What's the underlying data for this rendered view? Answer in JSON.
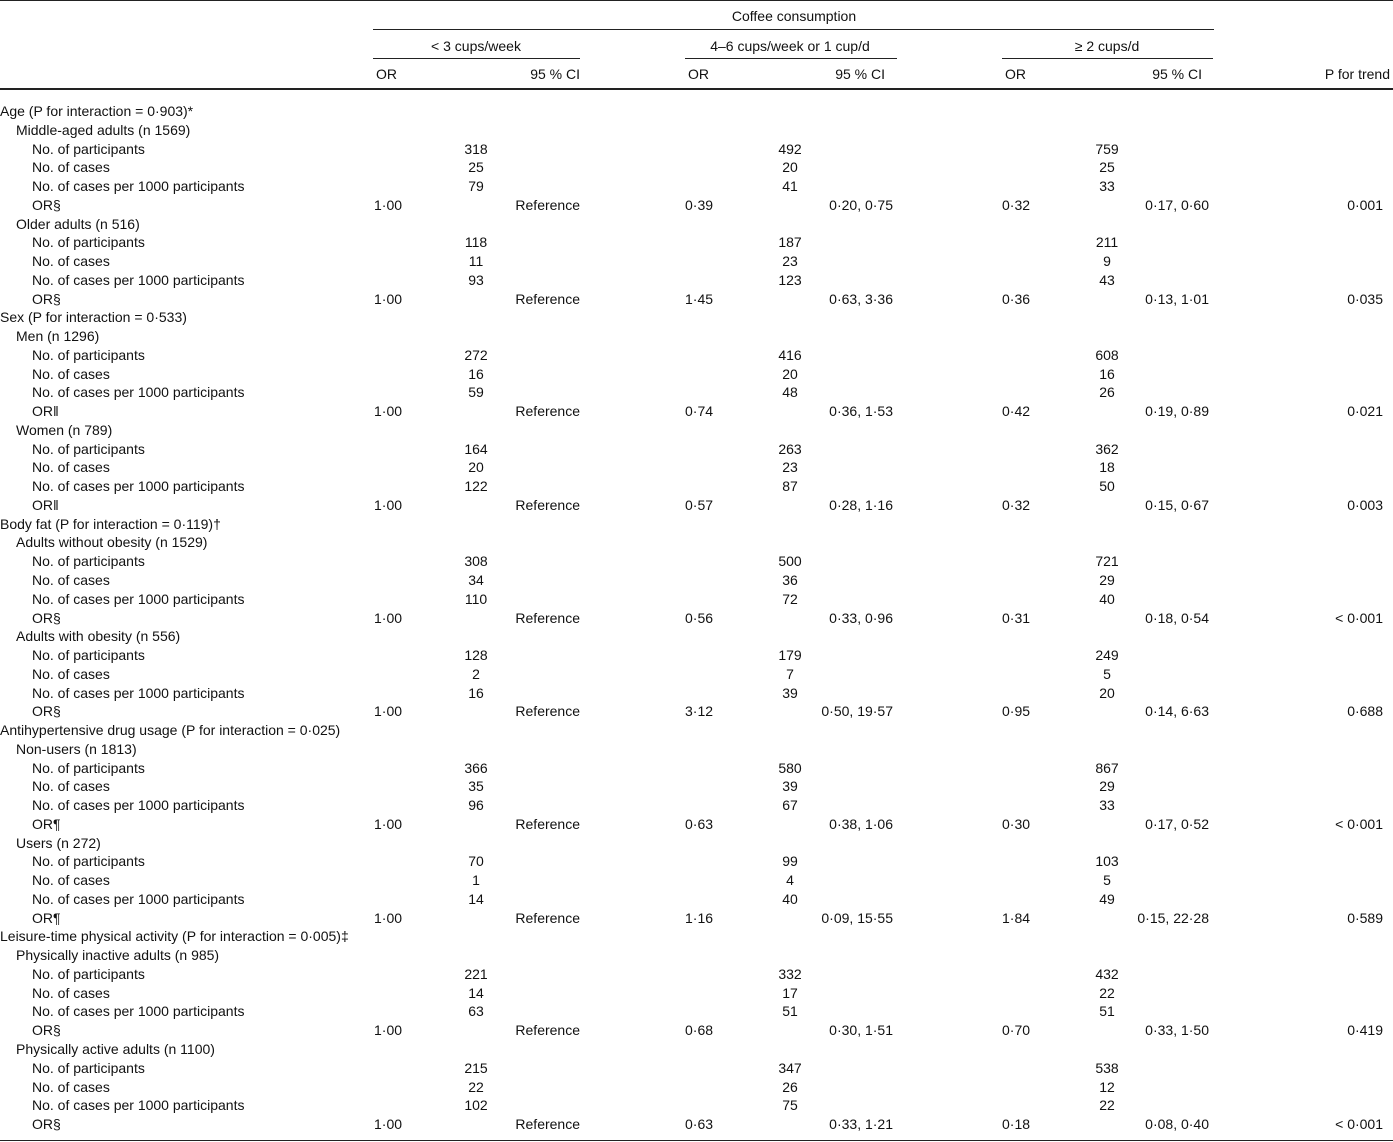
{
  "header": {
    "title": "Coffee consumption",
    "groups": [
      "< 3 cups/week",
      "4–6 cups/week or 1 cup/d",
      "≥ 2 cups/d"
    ],
    "columns": [
      "OR",
      "95 % CI",
      "OR",
      "95 % CI",
      "OR",
      "95 % CI",
      "P for trend"
    ]
  },
  "groups": [
    {
      "label": "Age (P for interaction = 0·903)*",
      "subgroups": [
        {
          "label": "Middle-aged adults (n 1569)",
          "rows": [
            {
              "label": "No. of participants",
              "values": [
                318,
                492,
                759
              ]
            },
            {
              "label": "No. of cases",
              "values": [
                25,
                20,
                25
              ]
            },
            {
              "label": "No. of cases per 1000 participants",
              "values": [
                79,
                41,
                33
              ]
            }
          ],
          "or": {
            "label": "OR§",
            "cells": [
              "1·00",
              "Reference",
              "0·39",
              "0·20, 0·75",
              "0·32",
              "0·17, 0·60",
              "0·001"
            ]
          }
        },
        {
          "label": "Older adults (n 516)",
          "rows": [
            {
              "label": "No. of participants",
              "values": [
                118,
                187,
                211
              ]
            },
            {
              "label": "No. of cases",
              "values": [
                11,
                23,
                9
              ]
            },
            {
              "label": "No. of cases per 1000 participants",
              "values": [
                93,
                123,
                43
              ]
            }
          ],
          "or": {
            "label": "OR§",
            "cells": [
              "1·00",
              "Reference",
              "1·45",
              "0·63, 3·36",
              "0·36",
              "0·13, 1·01",
              "0·035"
            ]
          }
        }
      ]
    },
    {
      "label": "Sex (P for interaction = 0·533)",
      "subgroups": [
        {
          "label": "Men (n 1296)",
          "rows": [
            {
              "label": "No. of participants",
              "values": [
                272,
                416,
                608
              ]
            },
            {
              "label": "No. of cases",
              "values": [
                16,
                20,
                16
              ]
            },
            {
              "label": "No. of cases per 1000 participants",
              "values": [
                59,
                48,
                26
              ]
            }
          ],
          "or": {
            "label": "OR‖",
            "cells": [
              "1·00",
              "Reference",
              "0·74",
              "0·36, 1·53",
              "0·42",
              "0·19, 0·89",
              "0·021"
            ]
          }
        },
        {
          "label": "Women (n 789)",
          "rows": [
            {
              "label": "No. of participants",
              "values": [
                164,
                263,
                362
              ]
            },
            {
              "label": "No. of cases",
              "values": [
                20,
                23,
                18
              ]
            },
            {
              "label": "No. of cases per 1000 participants",
              "values": [
                122,
                87,
                50
              ]
            }
          ],
          "or": {
            "label": "OR‖",
            "cells": [
              "1·00",
              "Reference",
              "0·57",
              "0·28, 1·16",
              "0·32",
              "0·15, 0·67",
              "0·003"
            ]
          }
        }
      ]
    },
    {
      "label": "Body fat (P for interaction = 0·119)†",
      "subgroups": [
        {
          "label": "Adults without obesity (n 1529)",
          "rows": [
            {
              "label": "No. of participants",
              "values": [
                308,
                500,
                721
              ]
            },
            {
              "label": "No. of cases",
              "values": [
                34,
                36,
                29
              ]
            },
            {
              "label": "No. of cases per 1000 participants",
              "values": [
                110,
                72,
                40
              ]
            }
          ],
          "or": {
            "label": "OR§",
            "cells": [
              "1·00",
              "Reference",
              "0·56",
              "0·33, 0·96",
              "0·31",
              "0·18, 0·54",
              "< 0·001"
            ]
          }
        },
        {
          "label": "Adults with obesity (n 556)",
          "rows": [
            {
              "label": "No. of participants",
              "values": [
                128,
                179,
                249
              ]
            },
            {
              "label": "No. of cases",
              "values": [
                2,
                7,
                5
              ]
            },
            {
              "label": "No. of cases per 1000 participants",
              "values": [
                16,
                39,
                20
              ]
            }
          ],
          "or": {
            "label": "OR§",
            "cells": [
              "1·00",
              "Reference",
              "3·12",
              "0·50, 19·57",
              "0·95",
              "0·14, 6·63",
              "0·688"
            ]
          }
        }
      ]
    },
    {
      "label": "Antihypertensive drug usage (P for interaction = 0·025)",
      "subgroups": [
        {
          "label": "Non-users (n 1813)",
          "rows": [
            {
              "label": "No. of participants",
              "values": [
                366,
                580,
                867
              ]
            },
            {
              "label": "No. of cases",
              "values": [
                35,
                39,
                29
              ]
            },
            {
              "label": "No. of cases per 1000 participants",
              "values": [
                96,
                67,
                33
              ]
            }
          ],
          "or": {
            "label": "OR¶",
            "cells": [
              "1·00",
              "Reference",
              "0·63",
              "0·38, 1·06",
              "0·30",
              "0·17, 0·52",
              "< 0·001"
            ]
          }
        },
        {
          "label": "Users (n 272)",
          "rows": [
            {
              "label": "No. of participants",
              "values": [
                70,
                99,
                103
              ]
            },
            {
              "label": "No. of cases",
              "values": [
                1,
                4,
                5
              ]
            },
            {
              "label": "No. of cases per 1000 participants",
              "values": [
                14,
                40,
                49
              ]
            }
          ],
          "or": {
            "label": "OR¶",
            "cells": [
              "1·00",
              "Reference",
              "1·16",
              "0·09, 15·55",
              "1·84",
              "0·15, 22·28",
              "0·589"
            ]
          }
        }
      ]
    },
    {
      "label": "Leisure-time physical activity (P for interaction = 0·005)‡",
      "subgroups": [
        {
          "label": "Physically inactive adults (n 985)",
          "rows": [
            {
              "label": "No. of participants",
              "values": [
                221,
                332,
                432
              ]
            },
            {
              "label": "No. of cases",
              "values": [
                14,
                17,
                22
              ]
            },
            {
              "label": "No. of cases per 1000 participants",
              "values": [
                63,
                51,
                51
              ]
            }
          ],
          "or": {
            "label": "OR§",
            "cells": [
              "1·00",
              "Reference",
              "0·68",
              "0·30, 1·51",
              "0·70",
              "0·33, 1·50",
              "0·419"
            ]
          }
        },
        {
          "label": "Physically active adults (n 1100)",
          "rows": [
            {
              "label": "No. of participants",
              "values": [
                215,
                347,
                538
              ]
            },
            {
              "label": "No. of cases",
              "values": [
                22,
                26,
                12
              ]
            },
            {
              "label": "No. of cases per 1000 participants",
              "values": [
                102,
                75,
                22
              ]
            }
          ],
          "or": {
            "label": "OR§",
            "cells": [
              "1·00",
              "Reference",
              "0·63",
              "0·33, 1·21",
              "0·18",
              "0·08, 0·40",
              "< 0·001"
            ]
          }
        }
      ]
    }
  ]
}
